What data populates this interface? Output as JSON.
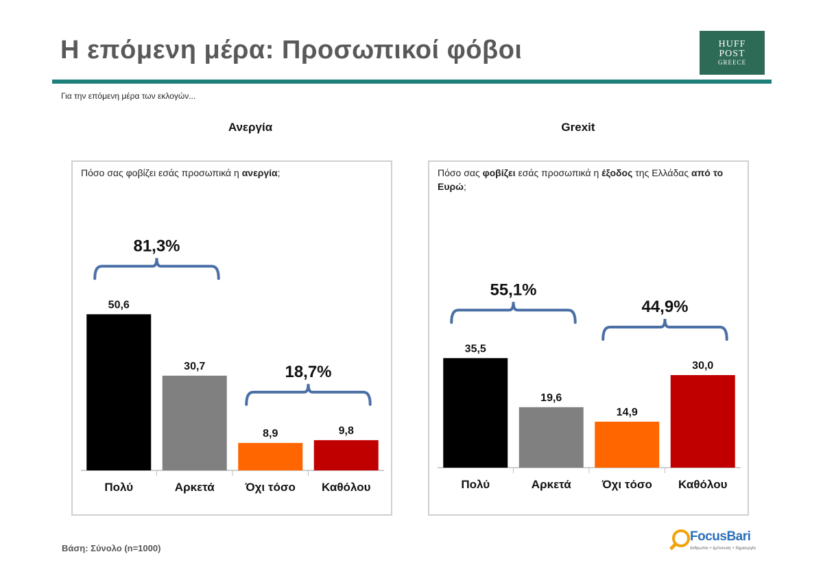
{
  "header": {
    "title": "Η επόμενη μέρα: Προσωπικοί φόβοι",
    "logo_line1": "HUFF",
    "logo_line2": "POST",
    "logo_line3": "GREECE"
  },
  "subtitle": "Για την επόμενη μέρα των εκλογών...",
  "footer": {
    "base": "Βάση: Σύνολο (n=1000)"
  },
  "brand": {
    "name": "FocusBari",
    "tagline": "άνθρωποι + έμπνευση + δημιουργία"
  },
  "colors": {
    "accent_rule": "#1c7f7a",
    "huffpost_green": "#2e6b57",
    "bracket": "#4a6fa5"
  },
  "chart_data": [
    {
      "type": "bar",
      "title": "Ανεργία",
      "question": [
        {
          "text": "Πόσο σας φοβίζει εσάς προσωπικά η ",
          "bold": false
        },
        {
          "text": "ανεργία",
          "bold": true
        },
        {
          "text": ";",
          "bold": false
        }
      ],
      "categories": [
        "Πολύ",
        "Αρκετά",
        "Όχι τόσο",
        "Καθόλου"
      ],
      "values": [
        50.6,
        30.7,
        8.9,
        9.8
      ],
      "value_labels": [
        "50,6",
        "30,7",
        "8,9",
        "9,8"
      ],
      "colors": [
        "#000000",
        "#808080",
        "#ff6600",
        "#c00000"
      ],
      "ylim": [
        0,
        60
      ],
      "groups": [
        {
          "label": "81,3%",
          "from": 0,
          "to": 1
        },
        {
          "label": "18,7%",
          "from": 2,
          "to": 3
        }
      ]
    },
    {
      "type": "bar",
      "title": "Grexit",
      "question": [
        {
          "text": "Πόσο σας ",
          "bold": false
        },
        {
          "text": "φοβίζει",
          "bold": true
        },
        {
          "text": " εσάς προσωπικά η ",
          "bold": false
        },
        {
          "text": "έξοδος",
          "bold": true
        },
        {
          "text": " της Ελλάδας ",
          "bold": false
        },
        {
          "text": "από το Ευρώ",
          "bold": true
        },
        {
          "text": ";",
          "bold": false
        }
      ],
      "categories": [
        "Πολύ",
        "Αρκετά",
        "Όχι τόσο",
        "Καθόλου"
      ],
      "values": [
        35.5,
        19.6,
        14.9,
        30.0
      ],
      "value_labels": [
        "35,5",
        "19,6",
        "14,9",
        "30,0"
      ],
      "colors": [
        "#000000",
        "#808080",
        "#ff6600",
        "#c00000"
      ],
      "ylim": [
        0,
        60
      ],
      "groups": [
        {
          "label": "55,1%",
          "from": 0,
          "to": 1
        },
        {
          "label": "44,9%",
          "from": 2,
          "to": 3
        }
      ]
    }
  ]
}
